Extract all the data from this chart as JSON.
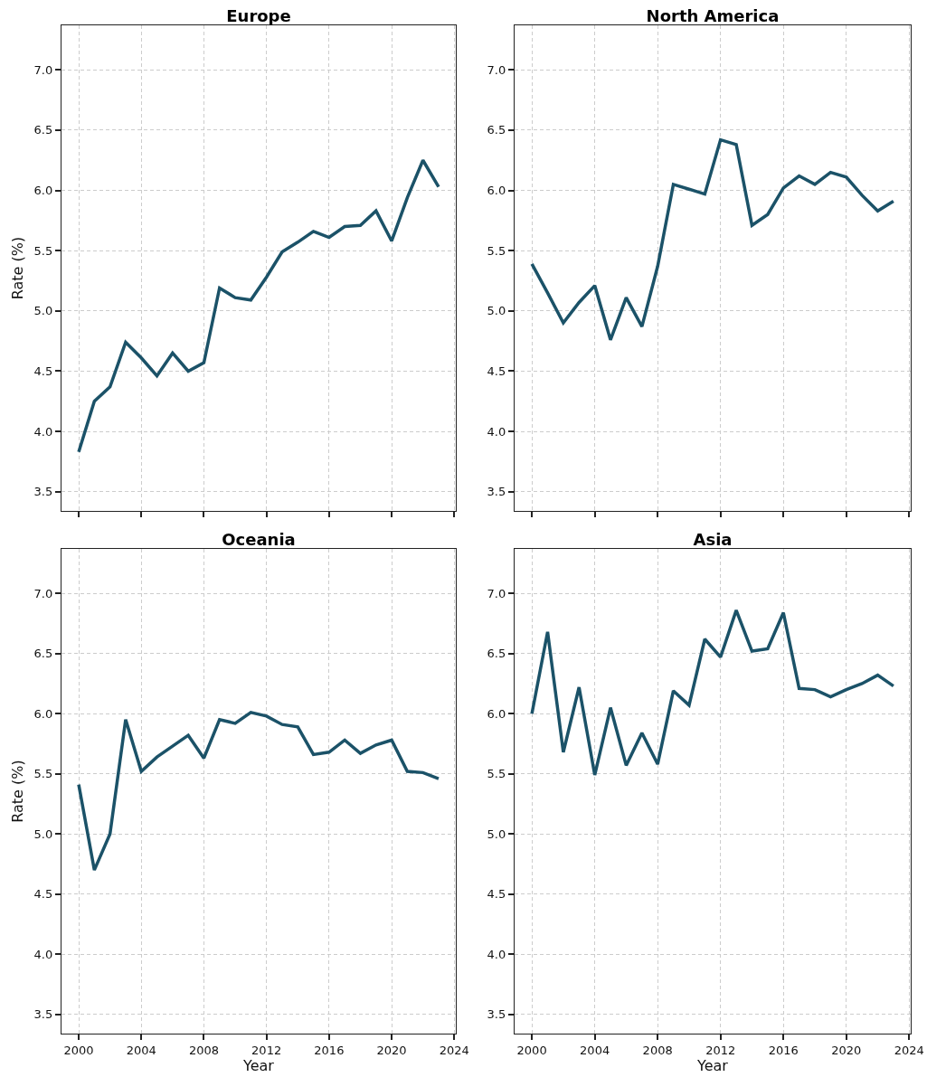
{
  "chart_data": [
    {
      "type": "line",
      "title": "Europe",
      "ylabel": "Rate (%)",
      "x": [
        2000,
        2001,
        2002,
        2003,
        2004,
        2005,
        2006,
        2007,
        2008,
        2009,
        2010,
        2011,
        2012,
        2013,
        2014,
        2015,
        2016,
        2017,
        2018,
        2019,
        2020,
        2021,
        2022,
        2023
      ],
      "series": [
        {
          "color": "#1b5268",
          "values": [
            3.83,
            4.25,
            4.37,
            4.74,
            4.61,
            4.46,
            4.65,
            4.5,
            4.57,
            5.19,
            5.11,
            5.09,
            5.28,
            5.49,
            5.57,
            5.66,
            5.61,
            5.7,
            5.71,
            5.83,
            5.58,
            5.94,
            6.25,
            6.03
          ]
        }
      ],
      "xlim": [
        1998.9,
        2024.1
      ],
      "ylim": [
        3.34,
        7.37
      ],
      "xticks": [
        2000,
        2004,
        2008,
        2012,
        2016,
        2020,
        2024
      ],
      "yticks": [
        {
          "value": 3.5,
          "label": "3.5"
        },
        {
          "value": 4,
          "label": "4.0"
        },
        {
          "value": 4.5,
          "label": "4.5"
        },
        {
          "value": 5,
          "label": "5.0"
        },
        {
          "value": 5.5,
          "label": "5.5"
        },
        {
          "value": 6,
          "label": "6.0"
        },
        {
          "value": 6.5,
          "label": "6.5"
        },
        {
          "value": 7,
          "label": "7.0"
        }
      ],
      "tick_labels": "y",
      "grid": true,
      "line_style": "solid",
      "marker": "none"
    },
    {
      "type": "line",
      "title": "North America",
      "x": [
        2000,
        2001,
        2002,
        2003,
        2004,
        2005,
        2006,
        2007,
        2008,
        2009,
        2010,
        2011,
        2012,
        2013,
        2014,
        2015,
        2016,
        2017,
        2018,
        2019,
        2020,
        2021,
        2022,
        2023
      ],
      "series": [
        {
          "color": "#1b5268",
          "values": [
            5.39,
            5.15,
            4.9,
            5.07,
            5.21,
            4.76,
            5.11,
            4.87,
            5.37,
            6.05,
            6.01,
            5.97,
            6.42,
            6.38,
            5.71,
            5.8,
            6.02,
            6.12,
            6.05,
            6.15,
            6.11,
            5.96,
            5.83,
            5.91
          ]
        }
      ],
      "xlim": [
        1998.9,
        2024.1
      ],
      "ylim": [
        3.34,
        7.37
      ],
      "xticks": [
        2000,
        2004,
        2008,
        2012,
        2016,
        2020,
        2024
      ],
      "yticks": [
        {
          "value": 3.5,
          "label": "3.5"
        },
        {
          "value": 4,
          "label": "4.0"
        },
        {
          "value": 4.5,
          "label": "4.5"
        },
        {
          "value": 5,
          "label": "5.0"
        },
        {
          "value": 5.5,
          "label": "5.5"
        },
        {
          "value": 6,
          "label": "6.0"
        },
        {
          "value": 6.5,
          "label": "6.5"
        },
        {
          "value": 7,
          "label": "7.0"
        }
      ],
      "tick_labels": "y",
      "grid": true,
      "line_style": "solid",
      "marker": "none"
    },
    {
      "type": "line",
      "title": "Oceania",
      "xlabel": "Year",
      "ylabel": "Rate (%)",
      "x": [
        2000,
        2001,
        2002,
        2003,
        2004,
        2005,
        2006,
        2007,
        2008,
        2009,
        2010,
        2011,
        2012,
        2013,
        2014,
        2015,
        2016,
        2017,
        2018,
        2019,
        2020,
        2021,
        2022,
        2023
      ],
      "series": [
        {
          "color": "#1b5268",
          "values": [
            5.41,
            4.7,
            5.0,
            5.95,
            5.52,
            5.64,
            5.73,
            5.82,
            5.63,
            5.95,
            5.92,
            6.01,
            5.98,
            5.91,
            5.89,
            5.66,
            5.68,
            5.78,
            5.67,
            5.74,
            5.78,
            5.52,
            5.51,
            5.46
          ]
        }
      ],
      "xlim": [
        1998.9,
        2024.1
      ],
      "ylim": [
        3.34,
        7.37
      ],
      "xticks": [
        2000,
        2004,
        2008,
        2012,
        2016,
        2020,
        2024
      ],
      "yticks": [
        {
          "value": 3.5,
          "label": "3.5"
        },
        {
          "value": 4,
          "label": "4.0"
        },
        {
          "value": 4.5,
          "label": "4.5"
        },
        {
          "value": 5,
          "label": "5.0"
        },
        {
          "value": 5.5,
          "label": "5.5"
        },
        {
          "value": 6,
          "label": "6.0"
        },
        {
          "value": 6.5,
          "label": "6.5"
        },
        {
          "value": 7,
          "label": "7.0"
        }
      ],
      "grid": true,
      "line_style": "solid",
      "marker": "none"
    },
    {
      "type": "line",
      "title": "Asia",
      "xlabel": "Year",
      "x": [
        2000,
        2001,
        2002,
        2003,
        2004,
        2005,
        2006,
        2007,
        2008,
        2009,
        2010,
        2011,
        2012,
        2013,
        2014,
        2015,
        2016,
        2017,
        2018,
        2019,
        2020,
        2021,
        2022,
        2023
      ],
      "series": [
        {
          "color": "#1b5268",
          "values": [
            6.0,
            6.68,
            5.68,
            6.22,
            5.49,
            6.05,
            5.57,
            5.84,
            5.58,
            6.19,
            6.07,
            6.62,
            6.47,
            6.86,
            6.52,
            6.54,
            6.84,
            6.21,
            6.2,
            6.14,
            6.2,
            6.25,
            6.32,
            6.23
          ]
        }
      ],
      "xlim": [
        1998.9,
        2024.1
      ],
      "ylim": [
        3.34,
        7.37
      ],
      "xticks": [
        2000,
        2004,
        2008,
        2012,
        2016,
        2020,
        2024
      ],
      "yticks": [
        {
          "value": 3.5,
          "label": "3.5"
        },
        {
          "value": 4,
          "label": "4.0"
        },
        {
          "value": 4.5,
          "label": "4.5"
        },
        {
          "value": 5,
          "label": "5.0"
        },
        {
          "value": 5.5,
          "label": "5.5"
        },
        {
          "value": 6,
          "label": "6.0"
        },
        {
          "value": 6.5,
          "label": "6.5"
        },
        {
          "value": 7,
          "label": "7.0"
        }
      ],
      "grid": true,
      "line_style": "solid",
      "marker": "none"
    }
  ]
}
